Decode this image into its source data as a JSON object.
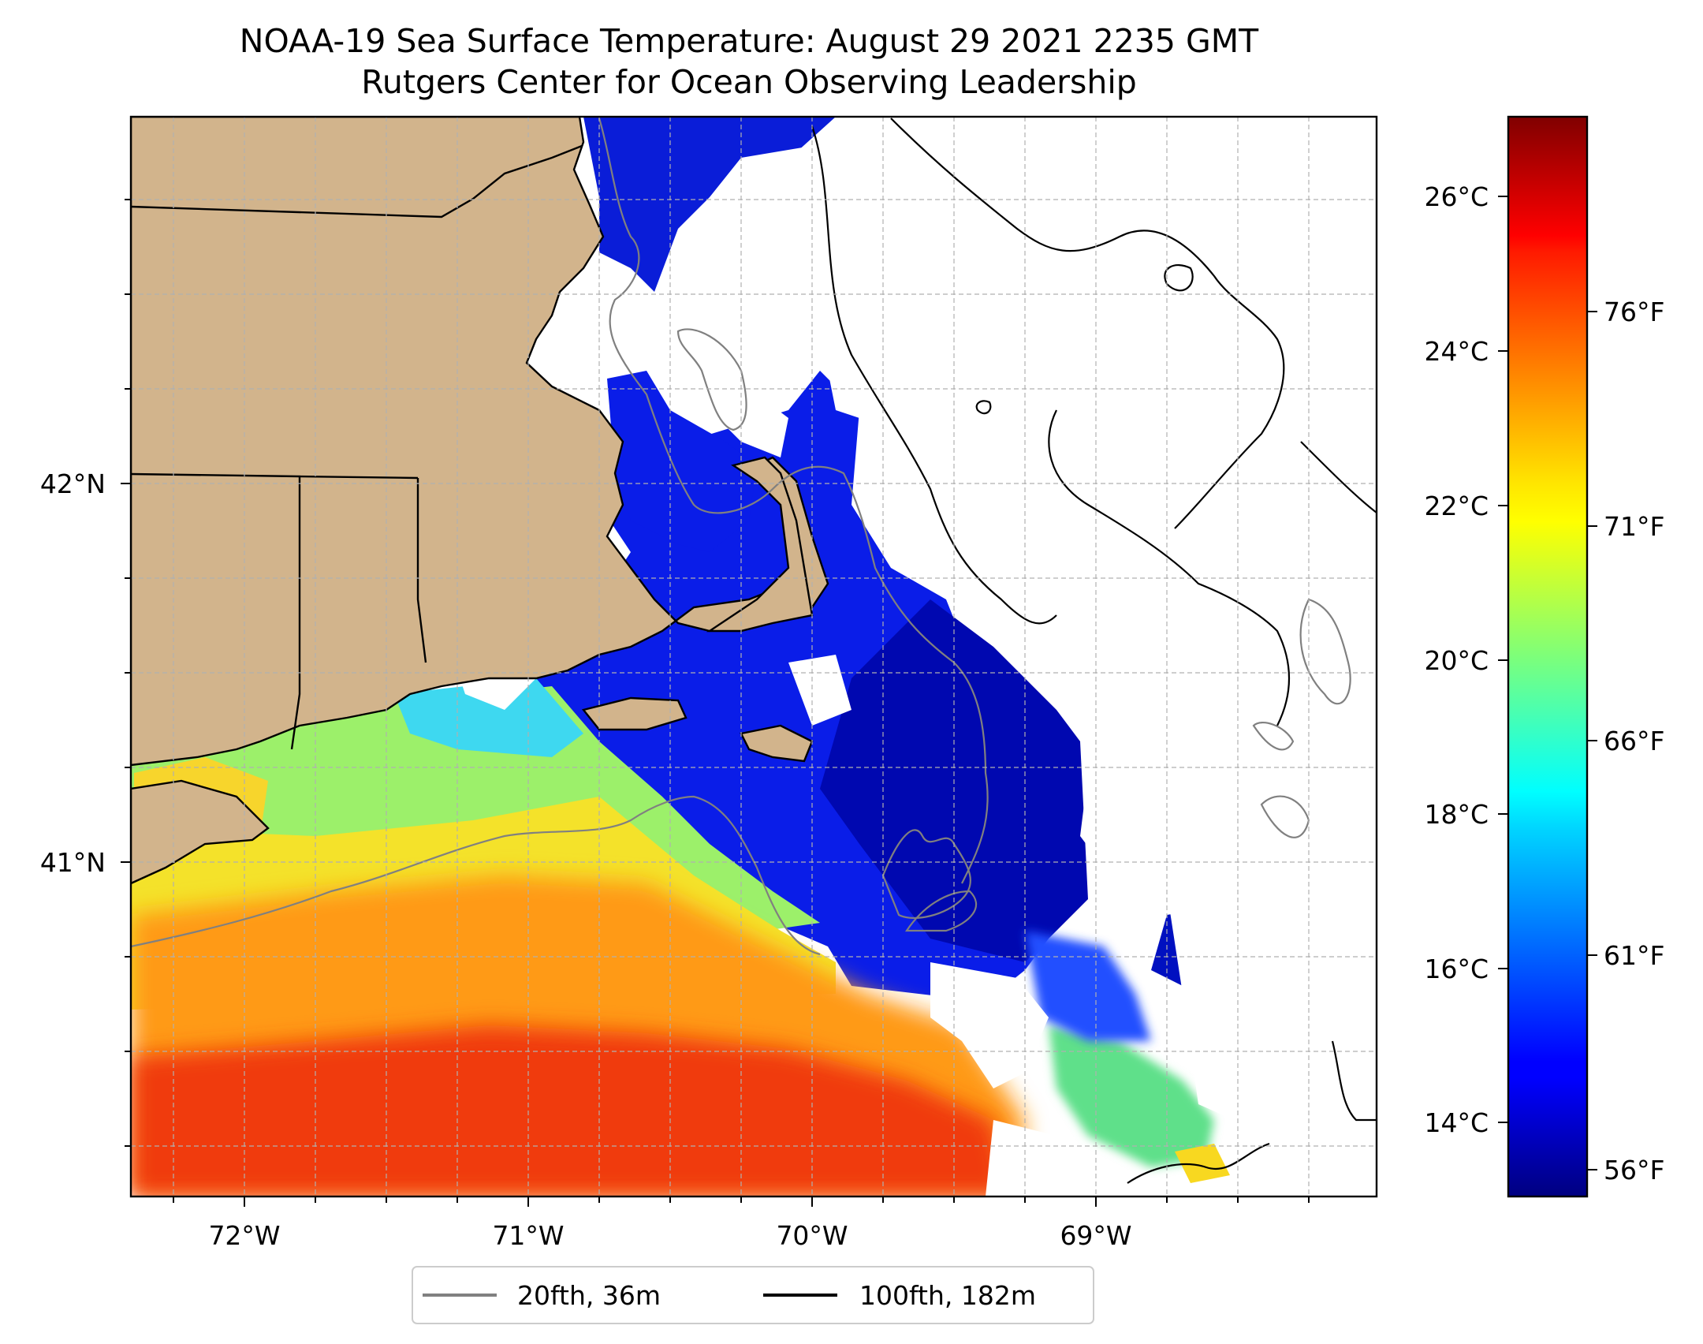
{
  "title": {
    "line1": "NOAA-19 Sea Surface Temperature: August 29 2021 2235 GMT",
    "line2": "Rutgers Center for Ocean Observing Leadership"
  },
  "map": {
    "x_ticks": [
      "72°W",
      "71°W",
      "70°W",
      "69°W"
    ],
    "y_ticks": [
      "42°N",
      "41°N"
    ],
    "colors": {
      "land": "#d2b48c",
      "no_data": "#ffffff",
      "gridline": "#b0b0b0",
      "isobath_20fth": "#808080",
      "isobath_100fth": "#000000"
    }
  },
  "colorbar": {
    "colormap": "jet",
    "celsius_ticks": [
      "26°C",
      "24°C",
      "22°C",
      "20°C",
      "18°C",
      "16°C",
      "14°C"
    ],
    "fahrenheit_ticks": [
      "76°F",
      "71°F",
      "66°F",
      "61°F",
      "56°F"
    ]
  },
  "legend": {
    "items": [
      {
        "label": "20fth, 36m",
        "color": "#808080"
      },
      {
        "label": "100fth, 182m",
        "color": "#000000"
      }
    ]
  }
}
